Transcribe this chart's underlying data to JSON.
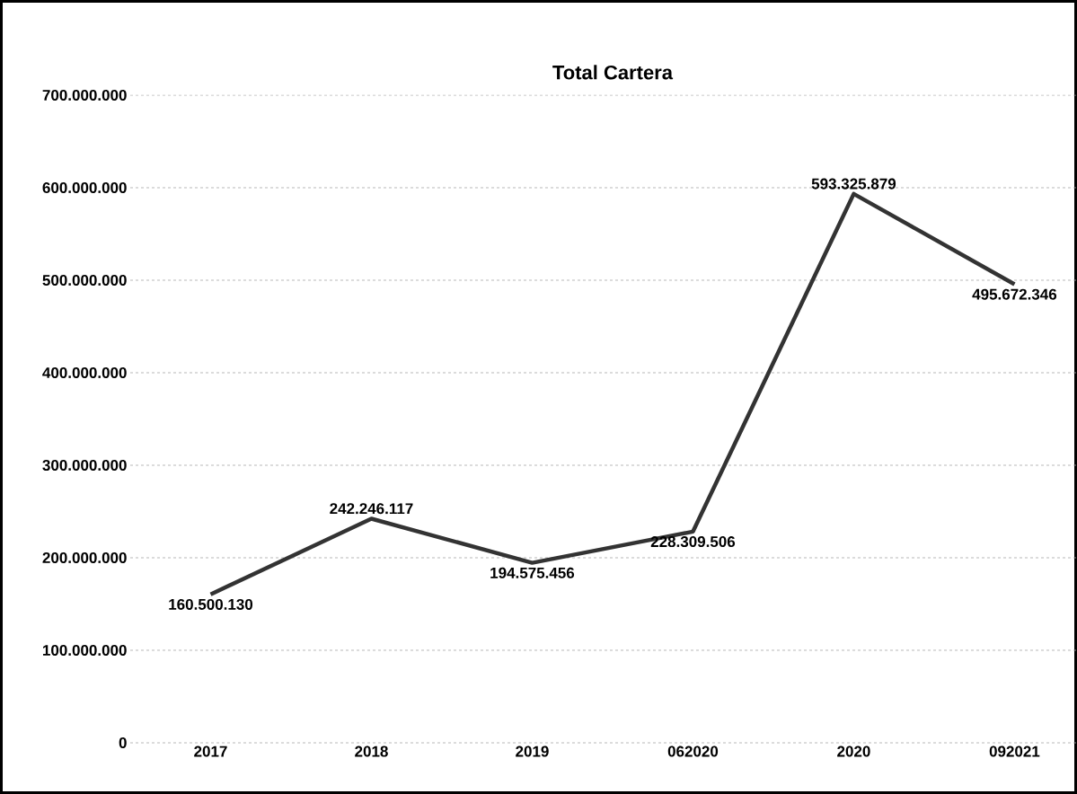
{
  "chart_data": {
    "type": "line",
    "title": "Total Cartera",
    "categories": [
      "2017",
      "2018",
      "2019",
      "062020",
      "2020",
      "092021"
    ],
    "values": [
      160500130,
      242246117,
      194575456,
      228309506,
      593325879,
      495672346
    ],
    "value_labels": [
      "160.500.130",
      "242.246.117",
      "194.575.456",
      "228.309.506",
      "593.325.879",
      "495.672.346"
    ],
    "color": "#333333",
    "ylim": [
      0,
      700000000
    ],
    "yticks": [
      {
        "value": 0,
        "label": "0"
      },
      {
        "value": 100000000,
        "label": "100.000.000"
      },
      {
        "value": 200000000,
        "label": "200.000.000"
      },
      {
        "value": 300000000,
        "label": "300.000.000"
      },
      {
        "value": 400000000,
        "label": "400.000.000"
      },
      {
        "value": 500000000,
        "label": "500.000.000"
      },
      {
        "value": 600000000,
        "label": "600.000.000"
      },
      {
        "value": 700000000,
        "label": "700.000.000"
      }
    ],
    "grid": "y",
    "marker": "none",
    "line_style": "solid"
  }
}
